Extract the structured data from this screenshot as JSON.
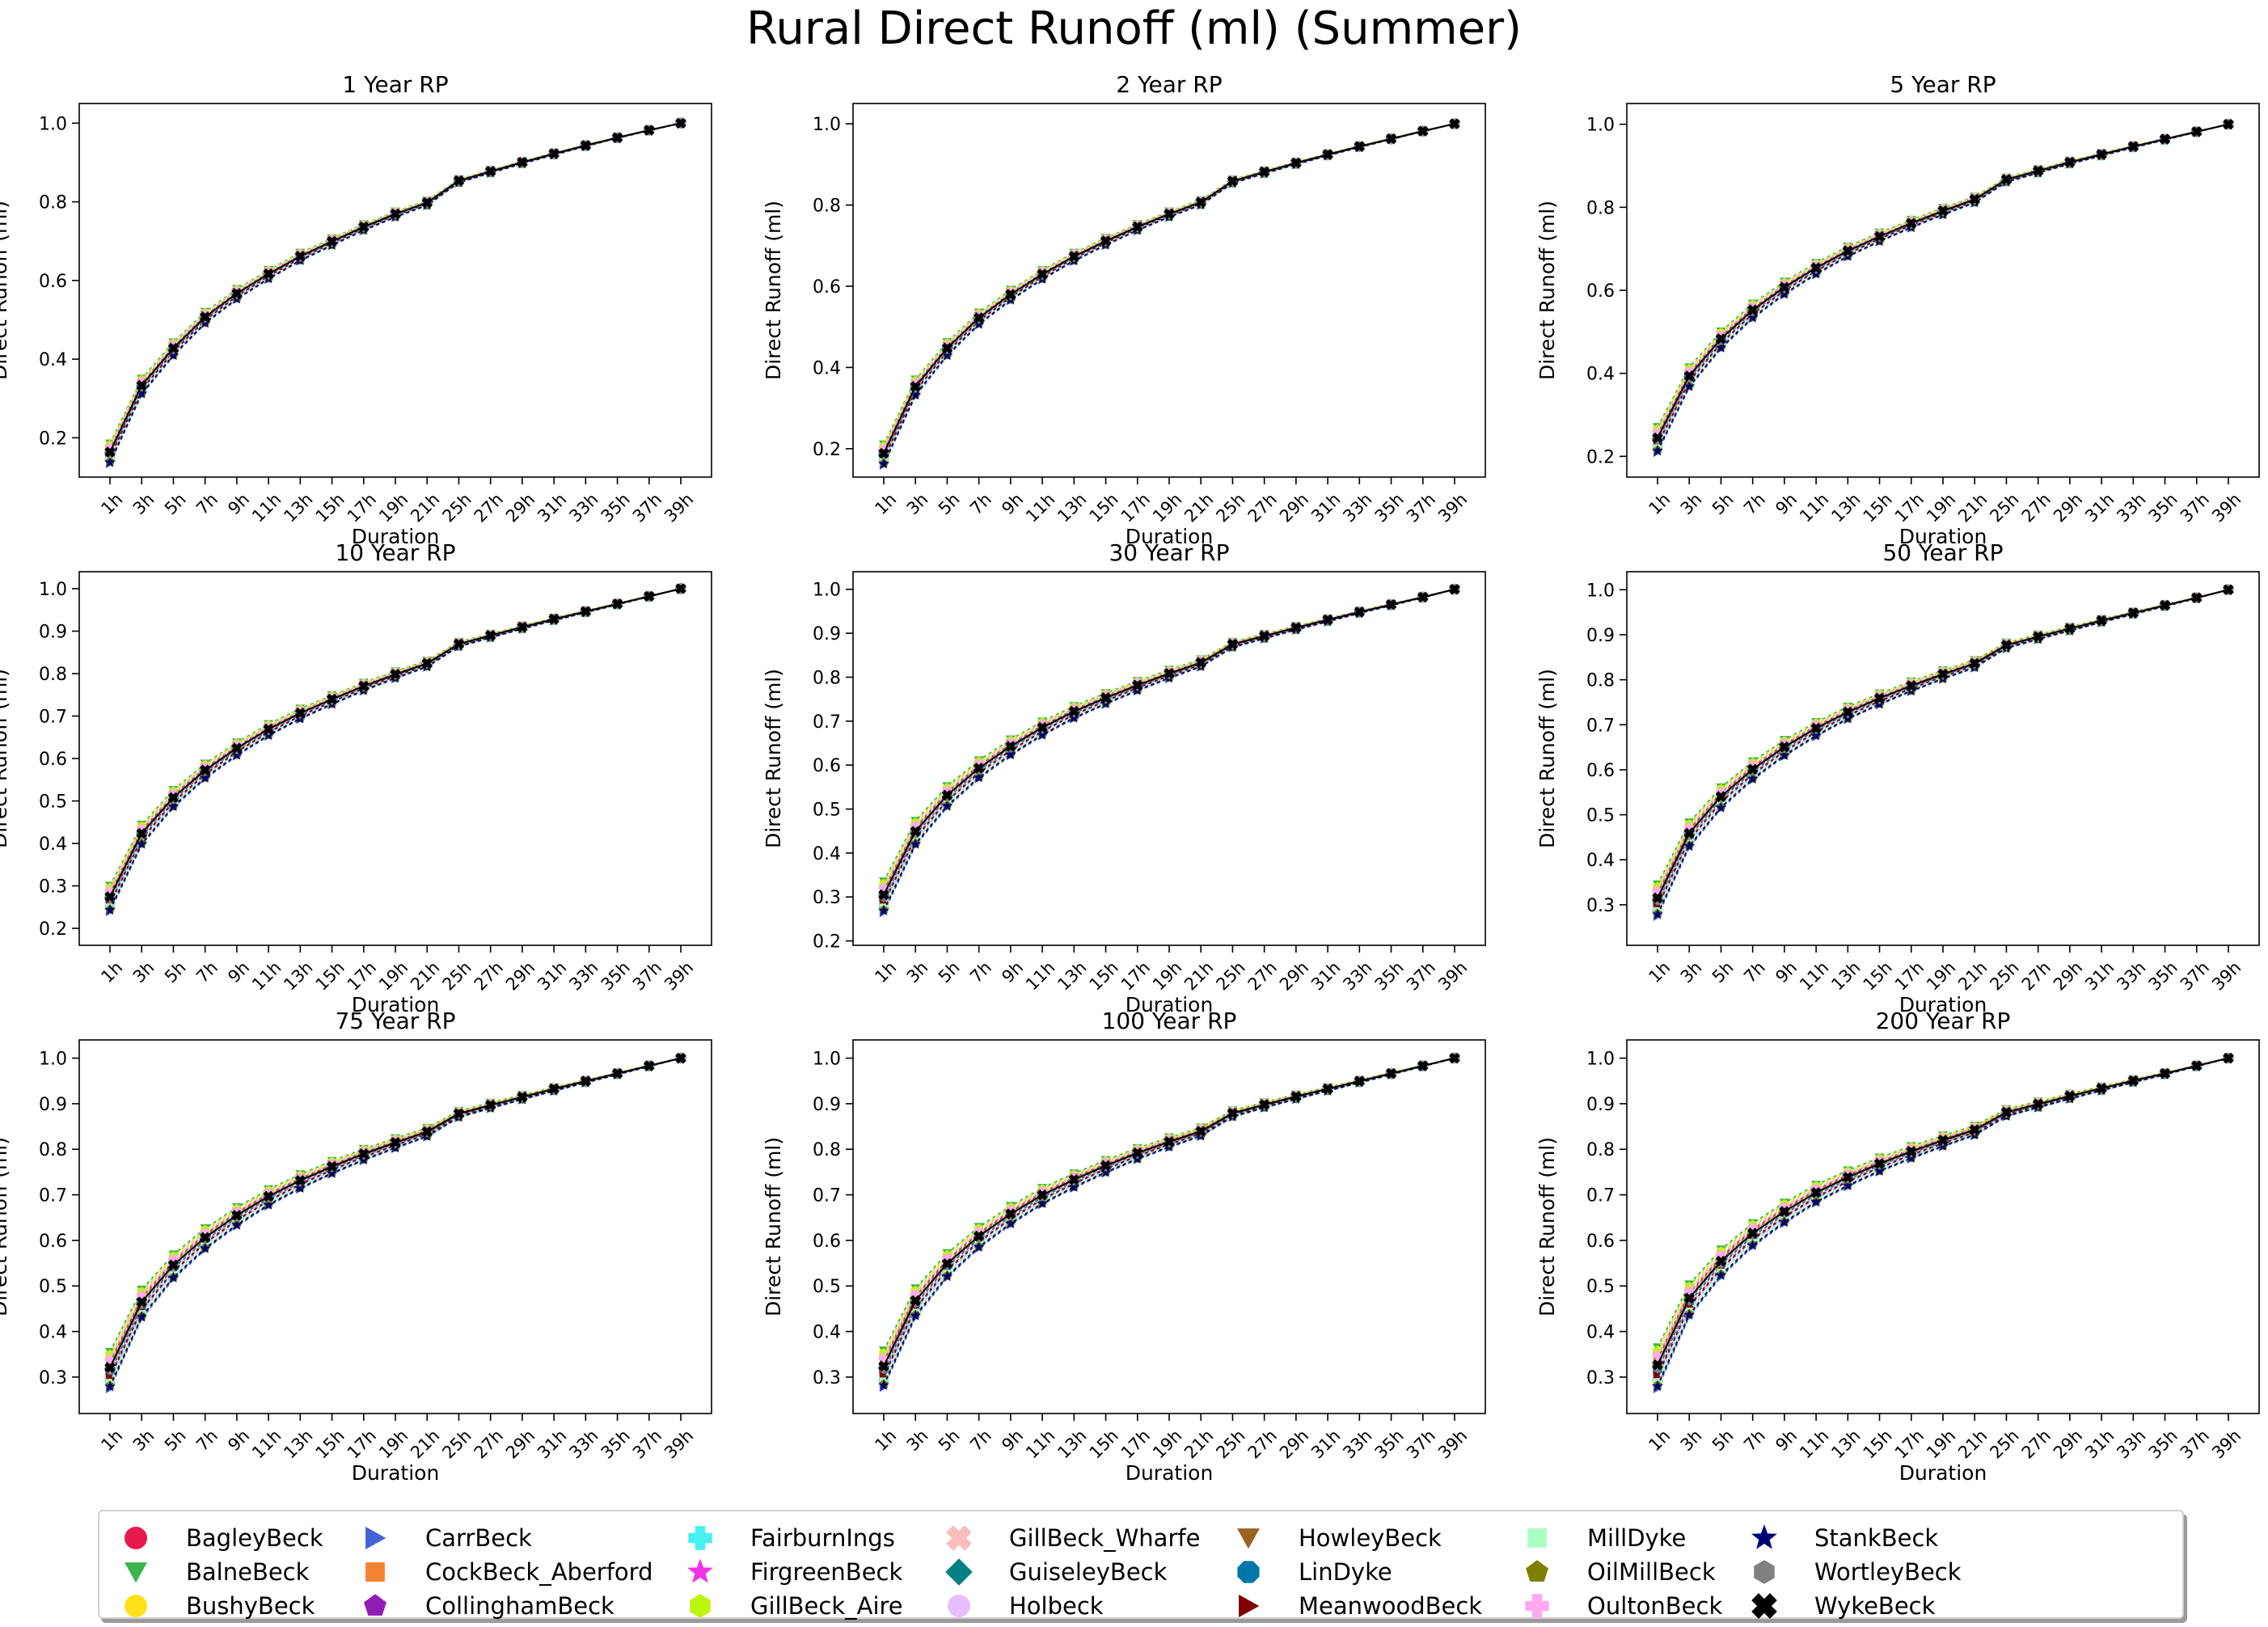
{
  "title": "Rural Direct Runoff (ml) (Summer)",
  "legend_items": [
    {
      "label": "BagleyBeck",
      "color": "#e6194b",
      "marker": "circle"
    },
    {
      "label": "BalneBeck",
      "color": "#3cb44b",
      "marker": "triangle-down"
    },
    {
      "label": "BushyBeck",
      "color": "#ffe119",
      "marker": "circle"
    },
    {
      "label": "CarrBeck",
      "color": "#4363d8",
      "marker": "triangle-right"
    },
    {
      "label": "CockBeck_Aberford",
      "color": "#f58231",
      "marker": "square"
    },
    {
      "label": "CollinghamBeck",
      "color": "#911eb4",
      "marker": "pentagon"
    },
    {
      "label": "FairburnIngs",
      "color": "#46f0f0",
      "marker": "plus"
    },
    {
      "label": "FirgreenBeck",
      "color": "#f032e6",
      "marker": "star"
    },
    {
      "label": "GillBeck_Aire",
      "color": "#bcf60c",
      "marker": "hexagon"
    },
    {
      "label": "GillBeck_Wharfe",
      "color": "#fabebe",
      "marker": "x"
    },
    {
      "label": "GuiseleyBeck",
      "color": "#008080",
      "marker": "diamond"
    },
    {
      "label": "Holbeck",
      "color": "#e6beff",
      "marker": "circle"
    },
    {
      "label": "HowleyBeck",
      "color": "#9a6324",
      "marker": "triangle-down"
    },
    {
      "label": "LinDyke",
      "color": "#0077aa",
      "marker": "octagon"
    },
    {
      "label": "MeanwoodBeck",
      "color": "#800000",
      "marker": "triangle-right"
    },
    {
      "label": "MillDyke",
      "color": "#aaffc3",
      "marker": "square"
    },
    {
      "label": "OilMillBeck",
      "color": "#808000",
      "marker": "pentagon"
    },
    {
      "label": "OultonBeck",
      "color": "#ffaaee",
      "marker": "plus"
    },
    {
      "label": "StankBeck",
      "color": "#000075",
      "marker": "star"
    },
    {
      "label": "WortleyBeck",
      "color": "#808080",
      "marker": "hexagon"
    },
    {
      "label": "WykeBeck",
      "color": "#000000",
      "marker": "x"
    }
  ],
  "chart_data": [
    {
      "type": "line",
      "title": "1 Year RP",
      "xlabel": "Duration",
      "ylabel": "Direct Runoff (ml)",
      "ylim": [
        0.1,
        1.05
      ],
      "yticks": [
        0.2,
        0.4,
        0.6,
        0.8,
        1.0
      ],
      "y_decimals": 1,
      "categories": [
        "1h",
        "3h",
        "5h",
        "7h",
        "9h",
        "11h",
        "13h",
        "15h",
        "17h",
        "19h",
        "21h",
        "25h",
        "27h",
        "29h",
        "31h",
        "33h",
        "35h",
        "37h",
        "39h"
      ],
      "baseline": [
        0.16,
        0.33,
        0.425,
        0.505,
        0.565,
        0.615,
        0.66,
        0.698,
        0.735,
        0.768,
        0.797,
        0.853,
        0.877,
        0.9,
        0.922,
        0.943,
        0.963,
        0.982,
        1.0
      ],
      "spread": 0.025
    },
    {
      "type": "line",
      "title": "2 Year RP",
      "xlabel": "Duration",
      "ylabel": "Direct Runoff (ml)",
      "ylim": [
        0.13,
        1.05
      ],
      "yticks": [
        0.2,
        0.4,
        0.6,
        0.8,
        1.0
      ],
      "y_decimals": 1,
      "categories": [
        "1h",
        "3h",
        "5h",
        "7h",
        "9h",
        "11h",
        "13h",
        "15h",
        "17h",
        "19h",
        "21h",
        "25h",
        "27h",
        "29h",
        "31h",
        "33h",
        "35h",
        "37h",
        "39h"
      ],
      "baseline": [
        0.185,
        0.35,
        0.445,
        0.52,
        0.578,
        0.628,
        0.672,
        0.71,
        0.745,
        0.777,
        0.806,
        0.858,
        0.881,
        0.903,
        0.924,
        0.944,
        0.963,
        0.982,
        1.0
      ],
      "spread": 0.025
    },
    {
      "type": "line",
      "title": "5 Year RP",
      "xlabel": "Duration",
      "ylabel": "Direct Runoff (ml)",
      "ylim": [
        0.15,
        1.05
      ],
      "yticks": [
        0.2,
        0.4,
        0.6,
        0.8,
        1.0
      ],
      "y_decimals": 1,
      "categories": [
        "1h",
        "3h",
        "5h",
        "7h",
        "9h",
        "11h",
        "13h",
        "15h",
        "17h",
        "19h",
        "21h",
        "25h",
        "27h",
        "29h",
        "31h",
        "33h",
        "35h",
        "37h",
        "39h"
      ],
      "baseline": [
        0.24,
        0.39,
        0.48,
        0.55,
        0.605,
        0.652,
        0.693,
        0.728,
        0.76,
        0.79,
        0.818,
        0.866,
        0.887,
        0.908,
        0.927,
        0.946,
        0.964,
        0.982,
        1.0
      ],
      "spread": 0.03
    },
    {
      "type": "line",
      "title": "10 Year RP",
      "xlabel": "Duration",
      "ylabel": "Direct Runoff (ml)",
      "ylim": [
        0.16,
        1.04
      ],
      "yticks": [
        0.2,
        0.3,
        0.4,
        0.5,
        0.6,
        0.7,
        0.8,
        0.9,
        1.0
      ],
      "y_decimals": 1,
      "categories": [
        "1h",
        "3h",
        "5h",
        "7h",
        "9h",
        "11h",
        "13h",
        "15h",
        "17h",
        "19h",
        "21h",
        "25h",
        "27h",
        "29h",
        "31h",
        "33h",
        "35h",
        "37h",
        "39h"
      ],
      "baseline": [
        0.27,
        0.42,
        0.505,
        0.57,
        0.622,
        0.667,
        0.705,
        0.738,
        0.769,
        0.797,
        0.823,
        0.869,
        0.889,
        0.909,
        0.928,
        0.946,
        0.964,
        0.982,
        1.0
      ],
      "spread": 0.03
    },
    {
      "type": "line",
      "title": "30 Year RP",
      "xlabel": "Duration",
      "ylabel": "Direct Runoff (ml)",
      "ylim": [
        0.19,
        1.04
      ],
      "yticks": [
        0.2,
        0.3,
        0.4,
        0.5,
        0.6,
        0.7,
        0.8,
        0.9,
        1.0
      ],
      "y_decimals": 1,
      "categories": [
        "1h",
        "3h",
        "5h",
        "7h",
        "9h",
        "11h",
        "13h",
        "15h",
        "17h",
        "19h",
        "21h",
        "25h",
        "27h",
        "29h",
        "31h",
        "33h",
        "35h",
        "37h",
        "39h"
      ],
      "baseline": [
        0.3,
        0.445,
        0.528,
        0.59,
        0.64,
        0.683,
        0.72,
        0.751,
        0.78,
        0.807,
        0.832,
        0.874,
        0.893,
        0.912,
        0.93,
        0.948,
        0.965,
        0.982,
        1.0
      ],
      "spread": 0.035
    },
    {
      "type": "line",
      "title": "50 Year RP",
      "xlabel": "Duration",
      "ylabel": "Direct Runoff (ml)",
      "ylim": [
        0.21,
        1.04
      ],
      "yticks": [
        0.3,
        0.4,
        0.5,
        0.6,
        0.7,
        0.8,
        0.9,
        1.0
      ],
      "y_decimals": 1,
      "categories": [
        "1h",
        "3h",
        "5h",
        "7h",
        "9h",
        "11h",
        "13h",
        "15h",
        "17h",
        "19h",
        "21h",
        "25h",
        "27h",
        "29h",
        "31h",
        "33h",
        "35h",
        "37h",
        "39h"
      ],
      "baseline": [
        0.31,
        0.455,
        0.537,
        0.598,
        0.648,
        0.69,
        0.726,
        0.757,
        0.785,
        0.811,
        0.835,
        0.876,
        0.895,
        0.913,
        0.931,
        0.948,
        0.965,
        0.982,
        1.0
      ],
      "spread": 0.035
    },
    {
      "type": "line",
      "title": "75 Year RP",
      "xlabel": "Duration",
      "ylabel": "Direct Runoff (ml)",
      "ylim": [
        0.22,
        1.04
      ],
      "yticks": [
        0.3,
        0.4,
        0.5,
        0.6,
        0.7,
        0.8,
        0.9,
        1.0
      ],
      "y_decimals": 1,
      "categories": [
        "1h",
        "3h",
        "5h",
        "7h",
        "9h",
        "11h",
        "13h",
        "15h",
        "17h",
        "19h",
        "21h",
        "25h",
        "27h",
        "29h",
        "31h",
        "33h",
        "35h",
        "37h",
        "39h"
      ],
      "baseline": [
        0.315,
        0.46,
        0.542,
        0.603,
        0.652,
        0.694,
        0.729,
        0.76,
        0.788,
        0.813,
        0.837,
        0.877,
        0.896,
        0.914,
        0.932,
        0.949,
        0.966,
        0.983,
        1.0
      ],
      "spread": 0.04
    },
    {
      "type": "line",
      "title": "100 Year RP",
      "xlabel": "Duration",
      "ylabel": "Direct Runoff (ml)",
      "ylim": [
        0.22,
        1.04
      ],
      "yticks": [
        0.3,
        0.4,
        0.5,
        0.6,
        0.7,
        0.8,
        0.9,
        1.0
      ],
      "y_decimals": 1,
      "categories": [
        "1h",
        "3h",
        "5h",
        "7h",
        "9h",
        "11h",
        "13h",
        "15h",
        "17h",
        "19h",
        "21h",
        "25h",
        "27h",
        "29h",
        "31h",
        "33h",
        "35h",
        "37h",
        "39h"
      ],
      "baseline": [
        0.318,
        0.463,
        0.545,
        0.606,
        0.655,
        0.697,
        0.731,
        0.762,
        0.79,
        0.815,
        0.838,
        0.878,
        0.897,
        0.915,
        0.932,
        0.949,
        0.966,
        0.983,
        1.0
      ],
      "spread": 0.04
    },
    {
      "type": "line",
      "title": "200 Year RP",
      "xlabel": "Duration",
      "ylabel": "Direct Runoff (ml)",
      "ylim": [
        0.22,
        1.04
      ],
      "yticks": [
        0.3,
        0.4,
        0.5,
        0.6,
        0.7,
        0.8,
        0.9,
        1.0
      ],
      "y_decimals": 1,
      "categories": [
        "1h",
        "3h",
        "5h",
        "7h",
        "9h",
        "11h",
        "13h",
        "15h",
        "17h",
        "19h",
        "21h",
        "25h",
        "27h",
        "29h",
        "31h",
        "33h",
        "35h",
        "37h",
        "39h"
      ],
      "baseline": [
        0.32,
        0.468,
        0.55,
        0.612,
        0.66,
        0.702,
        0.736,
        0.766,
        0.793,
        0.818,
        0.841,
        0.88,
        0.898,
        0.916,
        0.933,
        0.95,
        0.966,
        0.983,
        1.0
      ],
      "spread": 0.045
    }
  ]
}
